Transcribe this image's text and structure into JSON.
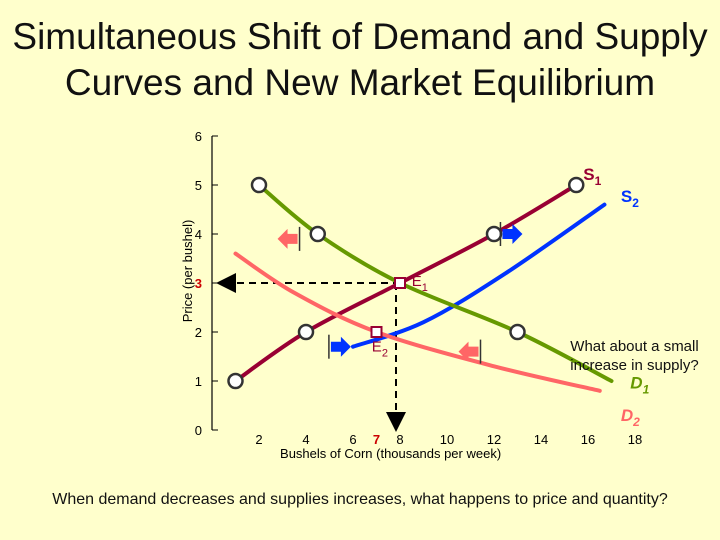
{
  "slide": {
    "title_line1": "Simultaneous Shift of Demand and Supply",
    "title_line2": "Curves and New Market Equilibrium",
    "side_question": "What about a small increase in supply?",
    "footer_question": "When demand decreases and supplies increases, what happens to price and quantity?"
  },
  "chart_data": {
    "type": "line",
    "xlabel": "Bushels of Corn (thousands per week)",
    "ylabel": "Price (per bushel)",
    "x_ticks": [
      "2",
      "4",
      "6",
      "7",
      "8",
      "10",
      "12",
      "14",
      "16",
      "18"
    ],
    "x_tick_values": [
      2,
      4,
      6,
      7,
      8,
      10,
      12,
      14,
      16,
      18
    ],
    "y_ticks": [
      "0",
      "1",
      "2",
      "3",
      "4",
      "5",
      "6"
    ],
    "y_tick_values": [
      0,
      1,
      2,
      3,
      4,
      5,
      6
    ],
    "xlim": [
      0,
      19
    ],
    "ylim": [
      0,
      6
    ],
    "grid": false,
    "colors": {
      "S1": "#990033",
      "S2": "#0033FF",
      "D1": "#669900",
      "D2": "#FF6666",
      "axis": "#000000",
      "highlight": "#CC0000",
      "shift_arrow_blue": "#0033FF",
      "shift_arrow_red": "#FF6666"
    },
    "series": [
      {
        "name": "S1",
        "label": "S",
        "subscript": "1",
        "color": "#990033",
        "points": [
          [
            1,
            1
          ],
          [
            4,
            2
          ],
          [
            8,
            3
          ],
          [
            12,
            4
          ],
          [
            15.5,
            5
          ]
        ],
        "markers": [
          [
            1,
            1
          ],
          [
            4,
            2
          ],
          [
            12,
            4
          ],
          [
            15.5,
            5
          ]
        ]
      },
      {
        "name": "S2",
        "label": "S",
        "subscript": "2",
        "color": "#0033FF",
        "points": [
          [
            6,
            1.7
          ],
          [
            9,
            2.2
          ],
          [
            12.5,
            3.2
          ],
          [
            16.7,
            4.6
          ]
        ],
        "markers": []
      },
      {
        "name": "D1",
        "label": "D",
        "subscript": "1",
        "color": "#669900",
        "points": [
          [
            2,
            5
          ],
          [
            4.5,
            4
          ],
          [
            8,
            3
          ],
          [
            13,
            2
          ],
          [
            17,
            1
          ]
        ],
        "markers": [
          [
            2,
            5
          ],
          [
            4.5,
            4
          ],
          [
            13,
            2
          ]
        ]
      },
      {
        "name": "D2",
        "label": "D",
        "subscript": "2",
        "color": "#FF6666",
        "points": [
          [
            1,
            3.6
          ],
          [
            3.5,
            2.8
          ],
          [
            7,
            2
          ],
          [
            12,
            1.3
          ],
          [
            16.5,
            0.8
          ]
        ],
        "markers": []
      }
    ],
    "equilibria": [
      {
        "label": "E",
        "subscript": "1",
        "x": 8,
        "y": 3,
        "color": "#990033"
      },
      {
        "label": "E",
        "subscript": "2",
        "x": 7,
        "y": 2,
        "color": "#990033"
      }
    ],
    "highlighted_ticks": {
      "x": "7",
      "y": "3"
    },
    "shift_arrows": [
      {
        "series": "D2",
        "direction": "left",
        "x": 3.3,
        "y": 3.9,
        "color": "#FF6666"
      },
      {
        "series": "D2",
        "direction": "left",
        "x": 11,
        "y": 1.6,
        "color": "#FF6666"
      },
      {
        "series": "S2",
        "direction": "right",
        "x": 12.7,
        "y": 4,
        "color": "#0033FF"
      },
      {
        "series": "S2",
        "direction": "right",
        "x": 5.4,
        "y": 1.7,
        "color": "#0033FF"
      }
    ]
  }
}
